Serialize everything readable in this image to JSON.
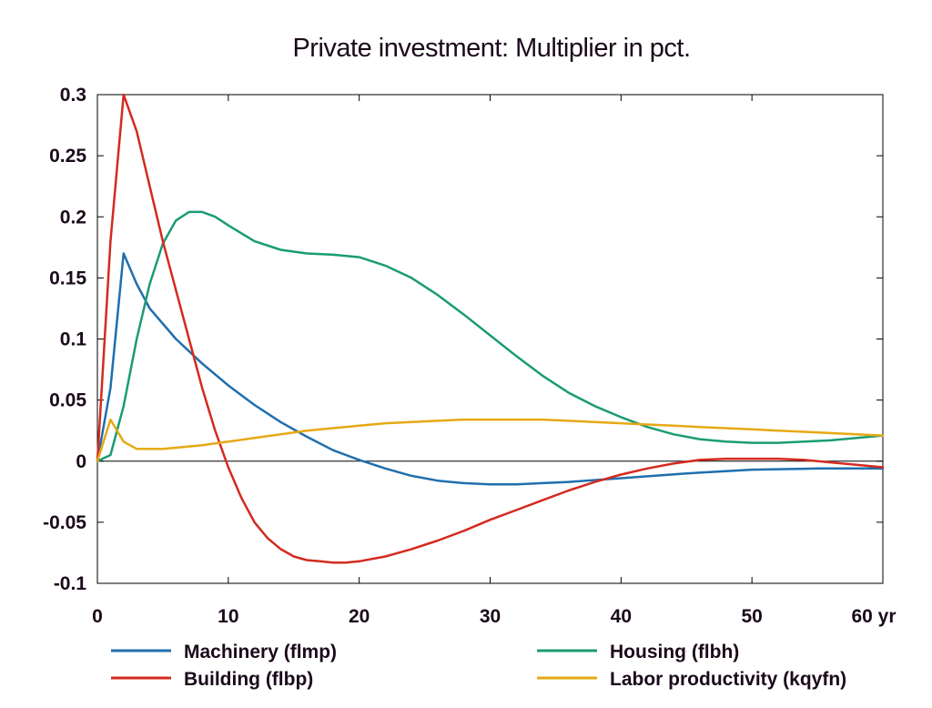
{
  "chart_data": {
    "type": "line",
    "title": "Private investment: Multiplier in pct.",
    "xlabel": "",
    "ylabel": "",
    "x_unit": "yr",
    "xlim": [
      0,
      60
    ],
    "ylim": [
      -0.1,
      0.3
    ],
    "x_ticks": [
      0,
      10,
      20,
      30,
      40,
      50,
      60
    ],
    "x_tick_labels": [
      "0",
      "10",
      "20",
      "30",
      "40",
      "50",
      "60 yr"
    ],
    "y_ticks": [
      -0.1,
      -0.05,
      0,
      0.05,
      0.1,
      0.15,
      0.2,
      0.25,
      0.3
    ],
    "y_tick_labels": [
      "-0.1",
      "-0.05",
      "0",
      "0.05",
      "0.1",
      "0.15",
      "0.2",
      "0.25",
      "0.3"
    ],
    "grid": false,
    "zero_line": true,
    "legend_position": "bottom",
    "series": [
      {
        "name": "Machinery (flmp)",
        "color": "#1f6fae",
        "x": [
          0,
          1,
          2,
          3,
          4,
          6,
          8,
          10,
          12,
          14,
          16,
          18,
          20,
          22,
          24,
          26,
          28,
          30,
          32,
          34,
          36,
          40,
          45,
          50,
          55,
          60
        ],
        "y": [
          0,
          0.06,
          0.17,
          0.145,
          0.125,
          0.1,
          0.08,
          0.062,
          0.046,
          0.032,
          0.02,
          0.009,
          0.001,
          -0.006,
          -0.012,
          -0.016,
          -0.018,
          -0.019,
          -0.019,
          -0.018,
          -0.017,
          -0.014,
          -0.01,
          -0.007,
          -0.006,
          -0.006
        ]
      },
      {
        "name": "Housing (flbh)",
        "color": "#1a9c75",
        "x": [
          0,
          1,
          2,
          3,
          4,
          5,
          6,
          7,
          8,
          9,
          10,
          12,
          14,
          16,
          18,
          20,
          22,
          24,
          26,
          28,
          30,
          32,
          34,
          36,
          38,
          40,
          42,
          44,
          46,
          48,
          50,
          52,
          54,
          56,
          58,
          60
        ],
        "y": [
          0,
          0.005,
          0.045,
          0.1,
          0.145,
          0.178,
          0.197,
          0.204,
          0.204,
          0.2,
          0.193,
          0.18,
          0.173,
          0.17,
          0.169,
          0.167,
          0.16,
          0.15,
          0.136,
          0.12,
          0.103,
          0.086,
          0.07,
          0.056,
          0.045,
          0.036,
          0.028,
          0.022,
          0.018,
          0.016,
          0.015,
          0.015,
          0.016,
          0.017,
          0.019,
          0.021
        ]
      },
      {
        "name": "Building (flbp)",
        "color": "#d42a20",
        "x": [
          0,
          1,
          2,
          3,
          4,
          5,
          6,
          7,
          8,
          9,
          10,
          11,
          12,
          13,
          14,
          15,
          16,
          17,
          18,
          19,
          20,
          22,
          24,
          26,
          28,
          30,
          32,
          34,
          36,
          38,
          40,
          42,
          44,
          46,
          48,
          50,
          52,
          54,
          56,
          58,
          60
        ],
        "y": [
          0,
          0.18,
          0.3,
          0.27,
          0.225,
          0.18,
          0.14,
          0.1,
          0.06,
          0.025,
          -0.005,
          -0.03,
          -0.05,
          -0.063,
          -0.072,
          -0.078,
          -0.081,
          -0.082,
          -0.083,
          -0.083,
          -0.082,
          -0.078,
          -0.072,
          -0.065,
          -0.057,
          -0.048,
          -0.04,
          -0.032,
          -0.024,
          -0.017,
          -0.011,
          -0.006,
          -0.002,
          0.001,
          0.002,
          0.002,
          0.002,
          0.001,
          -0.001,
          -0.003,
          -0.005
        ]
      },
      {
        "name": "Labor productivity (kqyfn)",
        "color": "#e6a914",
        "x": [
          0,
          1,
          2,
          3,
          4,
          5,
          6,
          8,
          10,
          12,
          14,
          16,
          18,
          20,
          22,
          24,
          26,
          28,
          30,
          32,
          34,
          36,
          38,
          40,
          42,
          44,
          46,
          48,
          50,
          52,
          54,
          56,
          58,
          60
        ],
        "y": [
          0,
          0.034,
          0.016,
          0.01,
          0.01,
          0.01,
          0.011,
          0.013,
          0.016,
          0.019,
          0.022,
          0.025,
          0.027,
          0.029,
          0.031,
          0.032,
          0.033,
          0.034,
          0.034,
          0.034,
          0.034,
          0.033,
          0.032,
          0.031,
          0.03,
          0.029,
          0.028,
          0.027,
          0.026,
          0.025,
          0.024,
          0.023,
          0.022,
          0.021
        ]
      }
    ]
  }
}
